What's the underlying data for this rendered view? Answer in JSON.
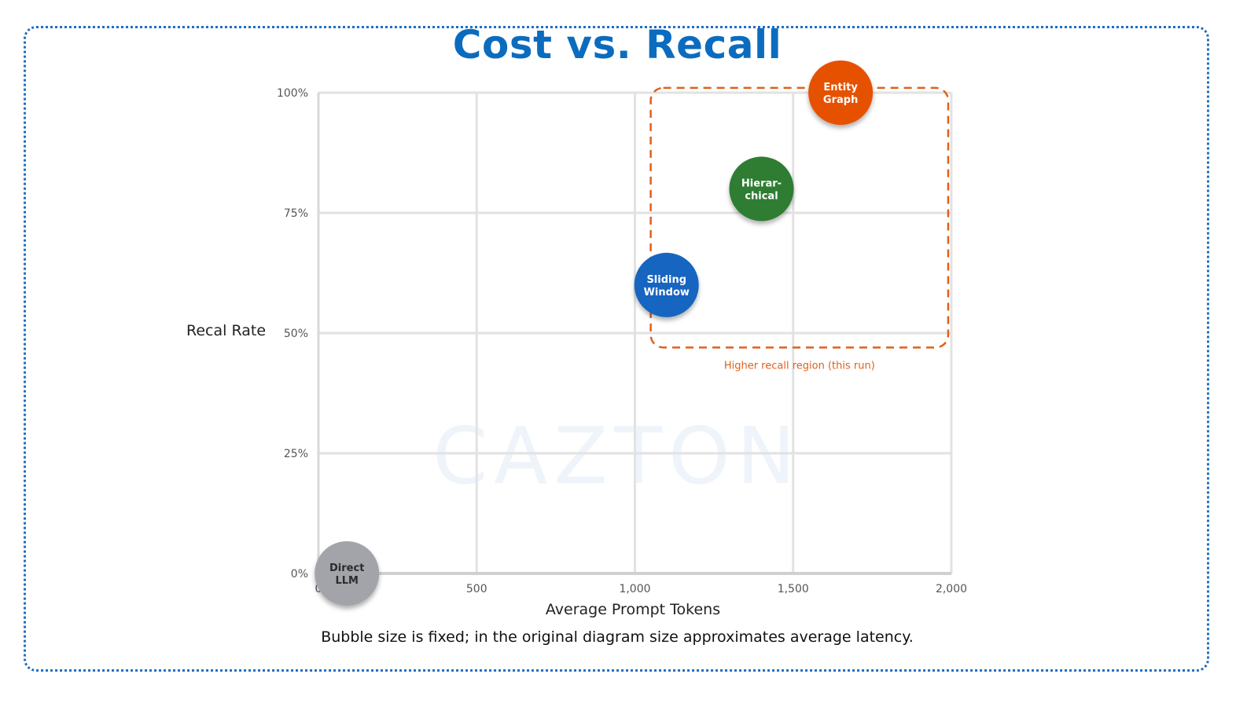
{
  "chart_data": {
    "type": "scatter",
    "title": "Cost vs. Recall",
    "xlabel": "Average Prompt Tokens",
    "ylabel": "Recal Rate",
    "xlim": [
      0,
      2000
    ],
    "ylim": [
      0,
      100
    ],
    "x_ticks": [
      "0",
      "500",
      "1,000",
      "1,500",
      "2,000"
    ],
    "x_tick_values": [
      0,
      500,
      1000,
      1500,
      2000
    ],
    "y_ticks": [
      "0%",
      "25%",
      "50%",
      "75%",
      "100%"
    ],
    "y_tick_values": [
      0,
      25,
      50,
      75,
      100
    ],
    "grid": true,
    "points": [
      {
        "label": [
          "Direct",
          "LLM"
        ],
        "x": 90,
        "y": 0,
        "color": "#a3a4aa",
        "text_color": "#2b2b2b"
      },
      {
        "label": [
          "Sliding",
          "Window"
        ],
        "x": 1100,
        "y": 60,
        "color": "#1565c0",
        "text_color": "#ffffff"
      },
      {
        "label": [
          "Hierar-",
          "chical"
        ],
        "x": 1400,
        "y": 80,
        "color": "#2e7d32",
        "text_color": "#ffffff"
      },
      {
        "label": [
          "Entity",
          "Graph"
        ],
        "x": 1650,
        "y": 100,
        "color": "#e65100",
        "text_color": "#ffffff"
      }
    ],
    "annotation_region": {
      "label": "Higher recall region (this run)",
      "x": [
        1050,
        1990
      ],
      "y": [
        47,
        101
      ],
      "color": "#e0601a"
    },
    "caption": "Bubble size is fixed; in the original diagram size approximates average latency."
  },
  "watermark": "CAZTON"
}
